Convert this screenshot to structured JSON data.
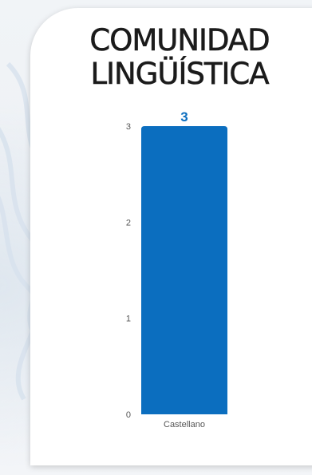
{
  "title_lines": [
    "COMUNIDAD",
    "LINGÜÍSTICA"
  ],
  "colors": {
    "bar": "#0b6ebf",
    "data_label": "#0b6ebf",
    "axis_text": "#555555"
  },
  "chart_data": {
    "type": "bar",
    "title": "COMUNIDAD LINGÜÍSTICA",
    "categories": [
      "Castellano"
    ],
    "values": [
      3
    ],
    "data_labels": [
      "3"
    ],
    "yticks": [
      0,
      1,
      2,
      3
    ],
    "ylim": [
      0,
      3
    ],
    "grid": false,
    "legend": "none"
  }
}
